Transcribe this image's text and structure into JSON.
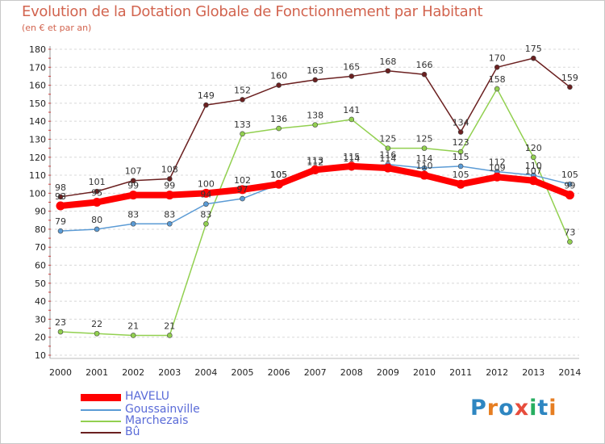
{
  "chart_data": {
    "type": "line",
    "title": "Evolution de la Dotation Globale de Fonctionnement par Habitant",
    "subtitle": "(en € et par an)",
    "xlabel": "",
    "ylabel": "",
    "x": [
      "2000",
      "2001",
      "2002",
      "2003",
      "2004",
      "2005",
      "2006",
      "2007",
      "2008",
      "2009",
      "2010",
      "2011",
      "2012",
      "2013",
      "2014"
    ],
    "ylim": [
      10,
      180
    ],
    "yticks": [
      10,
      20,
      30,
      40,
      50,
      60,
      70,
      80,
      90,
      100,
      110,
      120,
      130,
      140,
      150,
      160,
      170,
      180
    ],
    "grid": "horizontal dashed",
    "legend_position": "bottom-left",
    "series": [
      {
        "name": "HAVELU",
        "color": "#ff0000",
        "values": [
          93,
          95,
          99,
          99,
          100,
          102,
          105,
          113,
          115,
          114,
          110,
          105,
          109,
          107,
          99
        ]
      },
      {
        "name": "Goussainville",
        "color": "#5b9bd5",
        "values": [
          79,
          80,
          83,
          83,
          94,
          97,
          105,
          112,
          114,
          116,
          114,
          115,
          112,
          110,
          105
        ]
      },
      {
        "name": "Marchezais",
        "color": "#92d050",
        "values": [
          23,
          22,
          21,
          21,
          83,
          133,
          136,
          138,
          141,
          125,
          125,
          123,
          158,
          120,
          73
        ]
      },
      {
        "name": "Bû",
        "color": "#6b2020",
        "values": [
          98,
          101,
          107,
          108,
          149,
          152,
          160,
          163,
          165,
          168,
          166,
          134,
          170,
          175,
          159
        ]
      }
    ]
  },
  "logo": {
    "letters": [
      "P",
      "r",
      "o",
      "x",
      "i",
      "t",
      "i"
    ],
    "colors": [
      "#2e86c1",
      "#e67e22",
      "#2e86c1",
      "#e74c3c",
      "#27ae60",
      "#2e86c1",
      "#e67e22"
    ]
  }
}
